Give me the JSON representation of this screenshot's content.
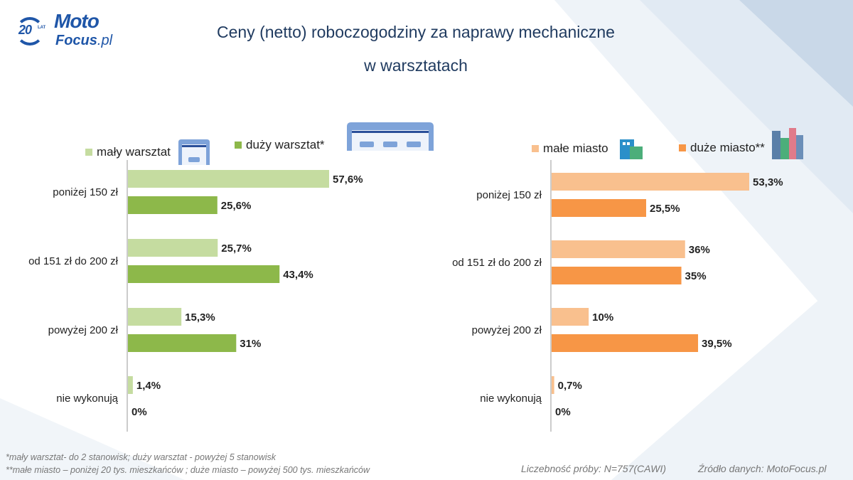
{
  "logo": {
    "years": "20",
    "lat": "LAT",
    "brand1": "Moto",
    "brand2": "Focus",
    ".pl": ".pl"
  },
  "title_line1": "Ceny (netto) roboczogodziny za naprawy mechaniczne",
  "title_line2": "w warsztatach",
  "chart_data": [
    {
      "type": "bar",
      "orientation": "horizontal",
      "categories": [
        "poniżej 150 zł",
        "od 151 zł do 200 zł",
        "powyżej 200 zł",
        "nie wykonują"
      ],
      "series": [
        {
          "name": "mały warsztat",
          "color": "#c5dca0",
          "values": [
            57.6,
            25.7,
            15.3,
            1.4
          ],
          "labels": [
            "57,6%",
            "25,7%",
            "15,3%",
            "1,4%"
          ],
          "icon": "small-garage-icon"
        },
        {
          "name": "duży warsztat*",
          "color": "#8db84a",
          "values": [
            25.6,
            43.4,
            31,
            0
          ],
          "labels": [
            "25,6%",
            "43,4%",
            "31%",
            "0%"
          ],
          "icon": "large-garage-icon"
        }
      ],
      "legend": "top"
    },
    {
      "type": "bar",
      "orientation": "horizontal",
      "categories": [
        "poniżej 150 zł",
        "od 151 zł do 200 zł",
        "powyżej 200 zł",
        "nie wykonują"
      ],
      "series": [
        {
          "name": "małe miasto",
          "color": "#f9c08e",
          "values": [
            53.3,
            36,
            10,
            0.7
          ],
          "labels": [
            "53,3%",
            "36%",
            "10%",
            "0,7%"
          ],
          "icon": "small-town-icon"
        },
        {
          "name": "duże miasto**",
          "color": "#f79646",
          "values": [
            25.5,
            35,
            39.5,
            0
          ],
          "labels": [
            "25,5%",
            "35%",
            "39,5%",
            "0%"
          ],
          "icon": "big-city-icon"
        }
      ],
      "legend": "top"
    }
  ],
  "footnotes": {
    "note1": "*mały warsztat- do 2 stanowisk; duży warsztat  - powyżej 5 stanowisk",
    "note2": "**małe miasto – poniżej 20 tys. mieszkańców ; duże miasto – powyżej 500 tys. mieszkańców",
    "sample": "Liczebność próby: N=757(CAWI)",
    "source": "Źródło danych: MotoFocus.pl"
  }
}
